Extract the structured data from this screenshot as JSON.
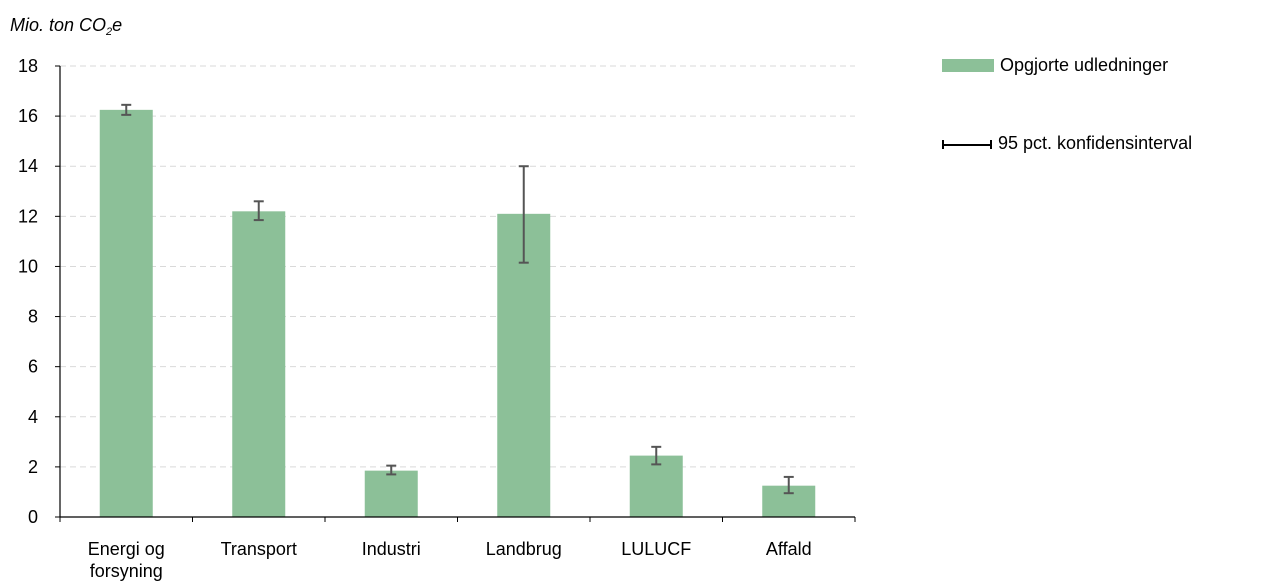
{
  "chart_data": {
    "type": "bar",
    "ylabel_prefix": "Mio. ton CO",
    "ylabel_sub": "2",
    "ylabel_suffix": "e",
    "categories": [
      [
        "Energi og",
        "forsyning"
      ],
      [
        "Transport"
      ],
      [
        "Industri"
      ],
      [
        "Landbrug"
      ],
      [
        "LULUCF"
      ],
      [
        "Affald"
      ]
    ],
    "series": [
      {
        "name": "Opgjorte udledninger",
        "values": [
          16.25,
          12.2,
          1.85,
          12.1,
          2.45,
          1.25
        ],
        "error_low": [
          16.05,
          11.85,
          1.7,
          10.15,
          2.1,
          0.95
        ],
        "error_high": [
          16.45,
          12.6,
          2.05,
          14.0,
          2.8,
          1.6
        ]
      }
    ],
    "error_label": "95 pct. konfidensinterval",
    "ylim": [
      0,
      18
    ],
    "yticks": [
      0,
      2,
      4,
      6,
      8,
      10,
      12,
      14,
      16,
      18
    ],
    "grid": true,
    "legend_position": "top-right",
    "colors": {
      "bar": "#8cc098",
      "error": "#555555",
      "grid": "#d9d9d9",
      "axis": "#000000"
    }
  }
}
